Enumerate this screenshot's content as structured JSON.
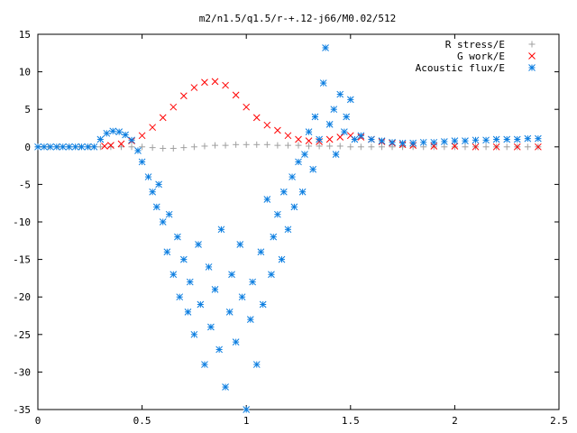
{
  "chart_data": {
    "type": "scatter",
    "title": "m2/n1.5/q1.5/r-+.12-j66/M0.02/512",
    "xlabel": "",
    "ylabel": "",
    "xlim": [
      0,
      2.5
    ],
    "ylim": [
      -35,
      15
    ],
    "xticks": [
      "0",
      "0.5",
      "1",
      "1.5",
      "2",
      "2.5"
    ],
    "yticks": [
      "15",
      "10",
      "5",
      "0",
      "-5",
      "-10",
      "-15",
      "-20",
      "-25",
      "-30",
      "-35"
    ],
    "grid": false,
    "legend_position": "top-right",
    "series": [
      {
        "name": "R stress/E",
        "marker": "plus",
        "color": "#a0a0a0",
        "x": [
          0.0,
          0.05,
          0.1,
          0.15,
          0.2,
          0.25,
          0.3,
          0.35,
          0.4,
          0.45,
          0.5,
          0.55,
          0.6,
          0.65,
          0.7,
          0.75,
          0.8,
          0.85,
          0.9,
          0.95,
          1.0,
          1.05,
          1.1,
          1.15,
          1.2,
          1.25,
          1.3,
          1.35,
          1.4,
          1.45,
          1.5,
          1.55,
          1.6,
          1.65,
          1.7,
          1.75,
          1.8,
          1.85,
          1.9,
          1.95,
          2.0,
          2.05,
          2.1,
          2.15,
          2.2,
          2.25,
          2.3,
          2.35,
          2.4
        ],
        "y": [
          0,
          0,
          0,
          0,
          0,
          0,
          0,
          0,
          0,
          0,
          0,
          -0.1,
          -0.2,
          -0.2,
          -0.1,
          0,
          0.1,
          0.2,
          0.2,
          0.3,
          0.3,
          0.3,
          0.3,
          0.2,
          0.2,
          0.2,
          0.1,
          0.1,
          0.1,
          0.1,
          0,
          0,
          0,
          0,
          0,
          0,
          0,
          0,
          0,
          0,
          0,
          0,
          0,
          0,
          0,
          0,
          0,
          0,
          0
        ]
      },
      {
        "name": "G work/E",
        "marker": "cross",
        "color": "#ff0000",
        "x": [
          0.32,
          0.35,
          0.4,
          0.45,
          0.5,
          0.55,
          0.6,
          0.65,
          0.7,
          0.75,
          0.8,
          0.85,
          0.9,
          0.95,
          1.0,
          1.05,
          1.1,
          1.15,
          1.2,
          1.25,
          1.3,
          1.35,
          1.4,
          1.45,
          1.5,
          1.55,
          1.6,
          1.65,
          1.7,
          1.75,
          1.8,
          1.9,
          2.0,
          2.1,
          2.2,
          2.3,
          2.4
        ],
        "y": [
          0.1,
          0.2,
          0.4,
          0.8,
          1.5,
          2.6,
          3.9,
          5.3,
          6.8,
          7.9,
          8.6,
          8.7,
          8.2,
          6.9,
          5.3,
          3.9,
          2.9,
          2.2,
          1.5,
          1.0,
          0.8,
          0.7,
          1.0,
          1.3,
          1.5,
          1.3,
          1.0,
          0.7,
          0.5,
          0.3,
          0.2,
          0.1,
          0.1,
          0,
          0,
          0,
          0
        ]
      },
      {
        "name": "Acoustic flux/E",
        "marker": "star",
        "color": "#0a7de0",
        "x": [
          0.0,
          0.03,
          0.06,
          0.09,
          0.12,
          0.15,
          0.18,
          0.21,
          0.24,
          0.27,
          0.3,
          0.33,
          0.36,
          0.39,
          0.42,
          0.45,
          0.48,
          0.5,
          0.53,
          0.55,
          0.57,
          0.58,
          0.6,
          0.62,
          0.63,
          0.65,
          0.67,
          0.68,
          0.7,
          0.72,
          0.73,
          0.75,
          0.77,
          0.78,
          0.8,
          0.82,
          0.83,
          0.85,
          0.87,
          0.88,
          0.9,
          0.92,
          0.93,
          0.95,
          0.97,
          0.98,
          1.0,
          1.02,
          1.03,
          1.05,
          1.07,
          1.08,
          1.1,
          1.12,
          1.13,
          1.15,
          1.17,
          1.18,
          1.2,
          1.22,
          1.23,
          1.25,
          1.27,
          1.28,
          1.3,
          1.32,
          1.33,
          1.35,
          1.37,
          1.38,
          1.4,
          1.42,
          1.43,
          1.45,
          1.47,
          1.48,
          1.5,
          1.52,
          1.55,
          1.6,
          1.65,
          1.7,
          1.75,
          1.8,
          1.85,
          1.9,
          1.95,
          2.0,
          2.05,
          2.1,
          2.15,
          2.2,
          2.25,
          2.3,
          2.35,
          2.4
        ],
        "y": [
          0,
          0,
          0,
          0,
          0,
          0,
          0,
          0,
          0,
          0,
          1,
          1.8,
          2.1,
          2.0,
          1.6,
          0.9,
          -0.5,
          -2,
          -4,
          -6,
          -8,
          -5,
          -10,
          -14,
          -9,
          -17,
          -12,
          -20,
          -15,
          -22,
          -18,
          -25,
          -13,
          -21,
          -29,
          -16,
          -24,
          -19,
          -27,
          -11,
          -32,
          -22,
          -17,
          -26,
          -13,
          -20,
          -35,
          -23,
          -18,
          -29,
          -14,
          -21,
          -7,
          -17,
          -12,
          -9,
          -15,
          -6,
          -11,
          -4,
          -8,
          -2,
          -6,
          -1,
          2,
          -3,
          4,
          1,
          8.5,
          13.2,
          3,
          5,
          -1,
          7,
          2,
          4,
          6.3,
          1,
          1.5,
          1,
          0.8,
          0.6,
          0.5,
          0.5,
          0.6,
          0.6,
          0.7,
          0.8,
          0.8,
          0.9,
          0.9,
          1.0,
          1.0,
          1.0,
          1.1,
          1.1
        ]
      }
    ]
  }
}
